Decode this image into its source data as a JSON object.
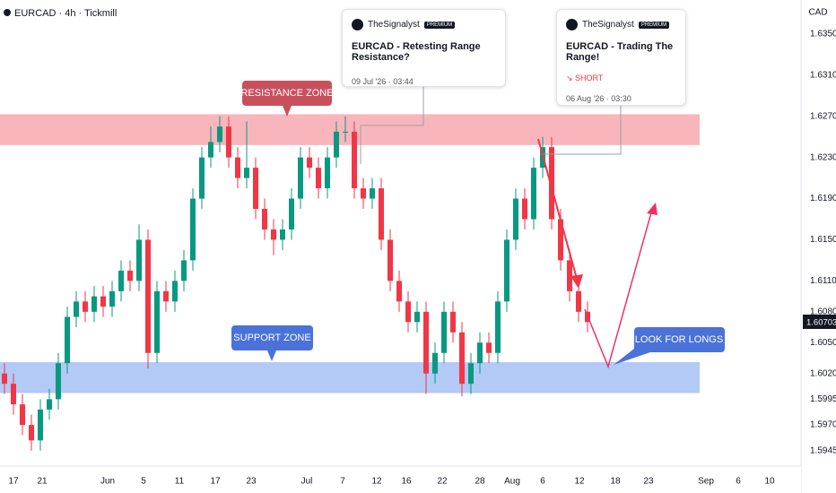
{
  "chart_data": {
    "type": "candlestick",
    "title": "EURCAD · 4h · Tickmill",
    "currency": "CAD",
    "last_price": 1.60703,
    "up_color": "#089981",
    "down_color": "#f23645",
    "x": [
      0.5,
      1.5,
      2.5,
      3.5,
      4.5,
      5.5,
      6.5,
      7.5,
      8.5,
      9.5,
      10.5,
      11.5,
      12.5,
      13.5,
      14.5,
      15.5,
      16.5,
      17.5,
      18.5,
      19.5,
      20.5,
      21.5,
      22.5,
      23.5,
      24.5,
      25.5,
      26.5,
      27.5,
      28.5,
      29.5,
      30.5,
      31.5,
      32.5,
      33.5,
      34.5,
      35.5,
      36.5,
      37.5,
      38.5,
      39.5,
      40.5,
      41.5,
      42.5,
      43.5,
      44.5,
      45.5,
      46.5,
      47.5,
      48.5,
      49.5,
      50.5,
      51.5,
      52.5,
      53.5,
      54.5,
      55.5,
      56.5,
      57.5,
      58.5,
      59.5,
      60.5,
      61.5,
      62.5,
      63.5,
      64.5,
      65.5
    ],
    "open": [
      1.602,
      1.601,
      1.599,
      1.597,
      1.5955,
      1.5985,
      1.5995,
      1.603,
      1.6075,
      1.609,
      1.608,
      1.6095,
      1.6085,
      1.61,
      1.612,
      1.611,
      1.615,
      1.604,
      1.61,
      1.609,
      1.611,
      1.613,
      1.619,
      1.623,
      1.6245,
      1.626,
      1.623,
      1.621,
      1.622,
      1.618,
      1.616,
      1.615,
      1.616,
      1.619,
      1.623,
      1.622,
      1.62,
      1.623,
      1.6255,
      1.6255,
      1.62,
      1.619,
      1.62,
      1.615,
      1.611,
      1.609,
      1.607,
      1.608,
      1.602,
      1.604,
      1.608,
      1.606,
      1.601,
      1.603,
      1.605,
      1.604,
      1.609,
      1.615,
      1.619,
      1.617,
      1.622,
      1.624,
      1.617,
      1.613,
      1.61,
      1.608
    ],
    "high": [
      1.603,
      1.602,
      1.6,
      1.598,
      1.5995,
      1.6005,
      1.604,
      1.6085,
      1.61,
      1.61,
      1.6105,
      1.6105,
      1.611,
      1.613,
      1.613,
      1.6165,
      1.616,
      1.611,
      1.611,
      1.612,
      1.614,
      1.62,
      1.624,
      1.626,
      1.627,
      1.627,
      1.624,
      1.6265,
      1.623,
      1.619,
      1.617,
      1.617,
      1.62,
      1.624,
      1.624,
      1.623,
      1.624,
      1.6265,
      1.627,
      1.6265,
      1.621,
      1.621,
      1.621,
      1.616,
      1.612,
      1.61,
      1.609,
      1.609,
      1.605,
      1.609,
      1.609,
      1.607,
      1.604,
      1.606,
      1.606,
      1.61,
      1.616,
      1.62,
      1.62,
      1.623,
      1.625,
      1.625,
      1.618,
      1.614,
      1.611,
      1.609
    ],
    "low": [
      1.6,
      1.598,
      1.596,
      1.5945,
      1.5945,
      1.5975,
      1.5985,
      1.602,
      1.6065,
      1.607,
      1.607,
      1.6075,
      1.6075,
      1.609,
      1.61,
      1.61,
      1.6025,
      1.603,
      1.608,
      1.608,
      1.61,
      1.612,
      1.618,
      1.622,
      1.6235,
      1.622,
      1.62,
      1.62,
      1.617,
      1.615,
      1.6135,
      1.614,
      1.615,
      1.618,
      1.621,
      1.619,
      1.619,
      1.622,
      1.6245,
      1.619,
      1.618,
      1.618,
      1.614,
      1.61,
      1.608,
      1.606,
      1.606,
      1.6,
      1.601,
      1.603,
      1.605,
      1.5998,
      1.6,
      1.602,
      1.603,
      1.603,
      1.608,
      1.614,
      1.616,
      1.616,
      1.621,
      1.616,
      1.612,
      1.609,
      1.607,
      1.606
    ],
    "close": [
      1.601,
      1.599,
      1.597,
      1.5955,
      1.5985,
      1.5995,
      1.603,
      1.6075,
      1.609,
      1.608,
      1.6095,
      1.6085,
      1.61,
      1.612,
      1.611,
      1.615,
      1.604,
      1.61,
      1.609,
      1.611,
      1.613,
      1.619,
      1.623,
      1.6245,
      1.626,
      1.623,
      1.621,
      1.622,
      1.618,
      1.616,
      1.615,
      1.616,
      1.619,
      1.623,
      1.622,
      1.62,
      1.623,
      1.6255,
      1.6255,
      1.62,
      1.619,
      1.62,
      1.615,
      1.611,
      1.609,
      1.607,
      1.608,
      1.602,
      1.604,
      1.608,
      1.606,
      1.601,
      1.603,
      1.605,
      1.604,
      1.609,
      1.615,
      1.619,
      1.617,
      1.622,
      1.624,
      1.617,
      1.613,
      1.61,
      1.608,
      1.607
    ],
    "xlim": [
      0,
      89.3
    ],
    "xticks": [
      {
        "value": 1.5,
        "label": "17"
      },
      {
        "value": 4.7,
        "label": "21"
      },
      {
        "value": 12,
        "label": "Jun"
      },
      {
        "value": 16,
        "label": "5"
      },
      {
        "value": 20,
        "label": "11"
      },
      {
        "value": 24,
        "label": "17"
      },
      {
        "value": 28,
        "label": "23"
      },
      {
        "value": 34.2,
        "label": "Jul"
      },
      {
        "value": 38.2,
        "label": "7"
      },
      {
        "value": 42,
        "label": "12"
      },
      {
        "value": 45.3,
        "label": "16"
      },
      {
        "value": 49.3,
        "label": "22"
      },
      {
        "value": 53.5,
        "label": "28"
      },
      {
        "value": 57.1,
        "label": "Aug"
      },
      {
        "value": 60.5,
        "label": "6"
      },
      {
        "value": 64.6,
        "label": "12"
      },
      {
        "value": 68.6,
        "label": "18"
      },
      {
        "value": 72.3,
        "label": "23"
      },
      {
        "value": 78.7,
        "label": "Sep"
      },
      {
        "value": 82.3,
        "label": "6"
      },
      {
        "value": 85.8,
        "label": "10"
      }
    ],
    "ylim": [
      1.593,
      1.6383
    ],
    "yticks": [
      {
        "value": 1.635,
        "label": "1.63500"
      },
      {
        "value": 1.631,
        "label": "1.63100"
      },
      {
        "value": 1.627,
        "label": "1.62700"
      },
      {
        "value": 1.623,
        "label": "1.62300"
      },
      {
        "value": 1.619,
        "label": "1.61900"
      },
      {
        "value": 1.615,
        "label": "1.61500"
      },
      {
        "value": 1.611,
        "label": "1.61100"
      },
      {
        "value": 1.608,
        "label": "1.60800"
      },
      {
        "value": 1.605,
        "label": "1.60500"
      },
      {
        "value": 1.602,
        "label": "1.60200"
      },
      {
        "value": 1.5995,
        "label": "1.59950"
      },
      {
        "value": 1.597,
        "label": "1.59700"
      },
      {
        "value": 1.5945,
        "label": "1.59450"
      }
    ],
    "zones": [
      {
        "label": "RESISTANCE ZONE",
        "ylim": [
          1.6242,
          1.6272
        ],
        "xlim": [
          0,
          78
        ],
        "color": "#f7a9b0"
      },
      {
        "label": "SUPPORT ZONE",
        "ylim": [
          1.6001,
          1.6031
        ],
        "xlim": [
          0,
          78
        ],
        "color": "#a6c0f5"
      }
    ],
    "annotation": "LOOK FOR LONGS"
  },
  "ideas": [
    {
      "author": "TheSignalyst",
      "badge": "PREMIUM",
      "title": "EURCAD - Retesting Range Resistance?",
      "date": "09 Jul '26 · 03:44"
    },
    {
      "author": "TheSignalyst",
      "badge": "PREMIUM",
      "title": "EURCAD - Trading The Range!",
      "signal": "SHORT",
      "date": "06 Aug '26 · 03:30"
    }
  ]
}
